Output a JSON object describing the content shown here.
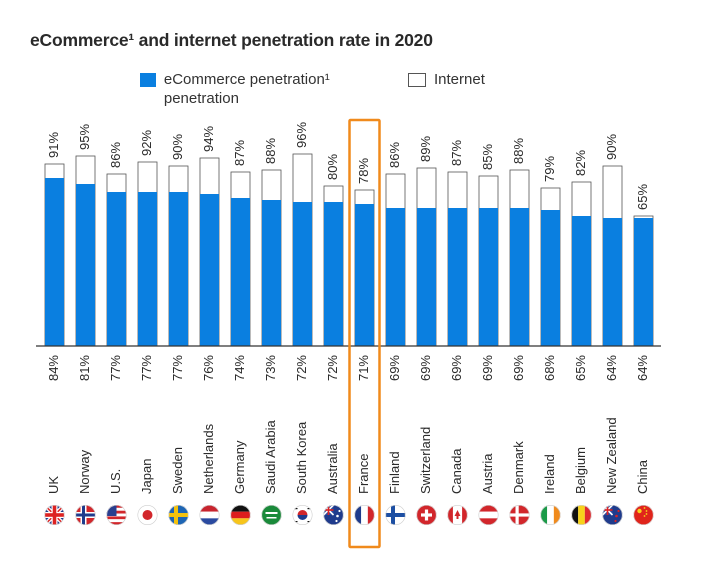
{
  "title": "eCommerce¹ and internet penetration rate in 2020",
  "legend": {
    "ecommerce_label": "eCommerce penetration¹ penetration",
    "internet_label": "Internet"
  },
  "colors": {
    "ecommerce": "#0a7fe0",
    "internet": "#ffffff",
    "internet_border": "#555555",
    "highlight": "#f08a1c",
    "axis": "#333333"
  },
  "highlighted_category": "France",
  "chart_data": {
    "type": "bar",
    "title": "eCommerce¹ and internet penetration rate in 2020",
    "xlabel": "",
    "ylabel": "",
    "ylim": [
      0,
      100
    ],
    "grid": false,
    "legend_position": "top",
    "categories": [
      "UK",
      "Norway",
      "U.S.",
      "Japan",
      "Sweden",
      "Netherlands",
      "Germany",
      "Saudi Arabia",
      "South Korea",
      "Australia",
      "France",
      "Finland",
      "Switzerland",
      "Canada",
      "Austria",
      "Denmark",
      "Ireland",
      "Belgium",
      "New Zealand",
      "China"
    ],
    "series": [
      {
        "name": "eCommerce penetration¹ penetration",
        "values": [
          84,
          81,
          77,
          77,
          77,
          76,
          74,
          73,
          72,
          72,
          71,
          69,
          69,
          69,
          69,
          69,
          68,
          65,
          64,
          64
        ],
        "labels": [
          "84%",
          "81%",
          "77%",
          "77%",
          "77%",
          "76%",
          "74%",
          "73%",
          "72%",
          "72%",
          "71%",
          "69%",
          "69%",
          "69%",
          "69%",
          "69%",
          "68%",
          "65%",
          "64%",
          "64%"
        ]
      },
      {
        "name": "Internet",
        "values": [
          91,
          95,
          86,
          92,
          90,
          94,
          87,
          88,
          96,
          80,
          78,
          86,
          89,
          87,
          85,
          88,
          79,
          82,
          90,
          65
        ],
        "labels": [
          "91%",
          "95%",
          "86%",
          "92%",
          "90%",
          "94%",
          "87%",
          "88%",
          "96%",
          "80%",
          "78%",
          "86%",
          "89%",
          "87%",
          "85%",
          "88%",
          "79%",
          "82%",
          "90%",
          "65%"
        ]
      }
    ]
  },
  "flags": [
    "uk-flag-icon",
    "norway-flag-icon",
    "us-flag-icon",
    "japan-flag-icon",
    "sweden-flag-icon",
    "netherlands-flag-icon",
    "germany-flag-icon",
    "saudi-arabia-flag-icon",
    "south-korea-flag-icon",
    "australia-flag-icon",
    "france-flag-icon",
    "finland-flag-icon",
    "switzerland-flag-icon",
    "canada-flag-icon",
    "austria-flag-icon",
    "denmark-flag-icon",
    "ireland-flag-icon",
    "belgium-flag-icon",
    "new-zealand-flag-icon",
    "china-flag-icon"
  ]
}
